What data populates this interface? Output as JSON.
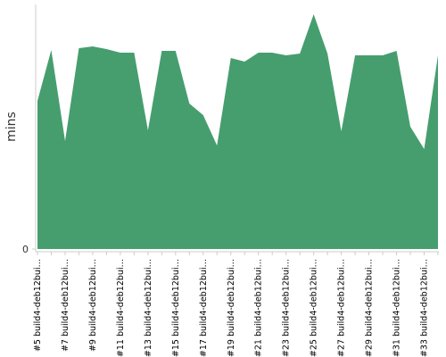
{
  "chart_data": {
    "type": "area",
    "y_label": "mins",
    "color": "#469e6e",
    "categories": [
      "#5 build4-deb12bui…",
      null,
      "#7 build4-deb12bui…",
      null,
      "#9 build4-deb12bui…",
      null,
      "#11 build4-deb12bui…",
      null,
      "#13 build4-deb12bui…",
      null,
      "#15 build4-deb12bui…",
      null,
      "#17 build4-deb12bui…",
      null,
      "#19 build4-deb12bui…",
      null,
      "#21 build4-deb12bui…",
      null,
      "#23 build4-deb12bui…",
      null,
      "#25 build4-deb12bui…",
      null,
      "#27 build4-deb12bui…",
      null,
      "#29 build4-deb12bui…",
      null,
      "#31 build4-deb12bui…",
      null,
      "#33 build4-deb12bui…",
      null
    ],
    "values": [
      16.6,
      22.3,
      12.1,
      22.5,
      22.7,
      22.4,
      22.0,
      22.0,
      13.3,
      22.2,
      22.2,
      16.3,
      15.0,
      11.6,
      21.4,
      21.0,
      22.0,
      22.0,
      21.7,
      21.9,
      26.3,
      21.9,
      13.2,
      21.7,
      21.7,
      21.7,
      22.2,
      13.7,
      11.2,
      21.7
    ],
    "ylim": [
      0,
      27.4
    ],
    "yticks": [
      0
    ]
  }
}
